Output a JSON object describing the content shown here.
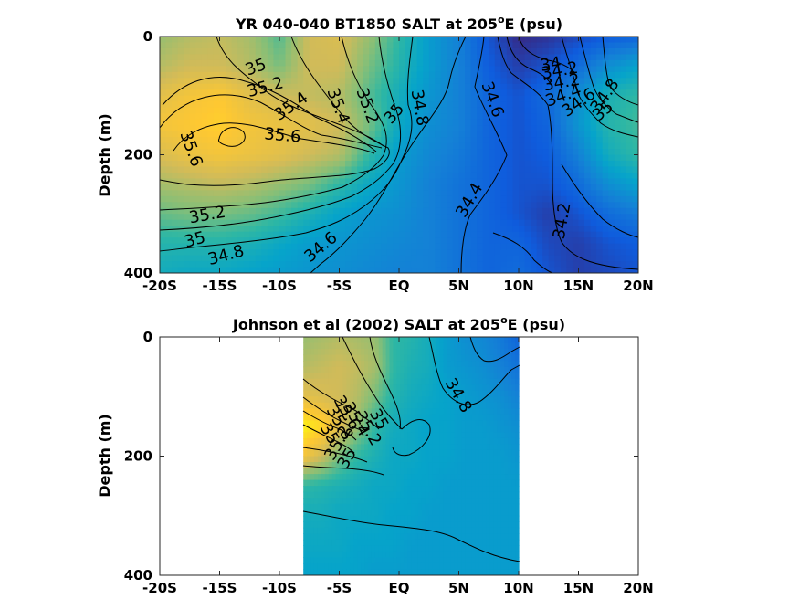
{
  "chart_data": [
    {
      "type": "heatmap",
      "subtype": "filled-contour",
      "title": "YR 040-040 BT1850 SALT at 205",
      "title_superscript": "o",
      "title_suffix": "E (psu)",
      "xlabel": "",
      "ylabel": "Depth (m)",
      "x_tick_labels": [
        "-20S",
        "-15S",
        "-10S",
        "-5S",
        "EQ",
        "5N",
        "10N",
        "15N",
        "20N"
      ],
      "x_tick_values": [
        -20,
        -15,
        -10,
        -5,
        0,
        5,
        10,
        15,
        20
      ],
      "y_tick_labels": [
        "0",
        "200",
        "400"
      ],
      "y_tick_values": [
        0,
        200,
        400
      ],
      "xlim": [
        -20,
        20
      ],
      "ylim": [
        0,
        400
      ],
      "y_reversed": true,
      "data_extent": [
        -20,
        20
      ],
      "colormap": "parula",
      "color_range": [
        34.0,
        36.0
      ],
      "x": [
        -20,
        -17.5,
        -15,
        -12.5,
        -10,
        -7.5,
        -5,
        -2.5,
        0,
        2.5,
        5,
        7.5,
        10,
        12.5,
        15,
        17.5,
        20
      ],
      "depth": [
        0,
        50,
        100,
        150,
        200,
        250,
        300,
        350,
        400
      ],
      "salinity": [
        [
          35.3,
          35.4,
          35.45,
          35.35,
          35.1,
          35.5,
          35.55,
          35.3,
          35.0,
          34.7,
          34.5,
          34.2,
          34.0,
          34.05,
          34.15,
          34.25,
          34.3
        ],
        [
          35.4,
          35.5,
          35.5,
          35.4,
          35.2,
          35.5,
          35.5,
          35.2,
          34.95,
          34.7,
          34.5,
          34.25,
          34.1,
          34.2,
          34.35,
          34.6,
          34.75
        ],
        [
          35.6,
          35.7,
          35.75,
          35.6,
          35.5,
          35.45,
          35.4,
          35.1,
          34.85,
          34.65,
          34.5,
          34.3,
          34.2,
          34.35,
          34.6,
          34.9,
          35.0
        ],
        [
          35.7,
          35.75,
          35.8,
          35.7,
          35.65,
          35.6,
          35.5,
          35.2,
          34.8,
          34.6,
          34.5,
          34.3,
          34.2,
          34.3,
          34.65,
          34.95,
          35.05
        ],
        [
          35.55,
          35.65,
          35.7,
          35.65,
          35.6,
          35.5,
          35.4,
          35.0,
          34.7,
          34.55,
          34.45,
          34.3,
          34.2,
          34.25,
          34.5,
          34.85,
          35.0
        ],
        [
          35.35,
          35.4,
          35.45,
          35.4,
          35.3,
          35.2,
          35.0,
          34.8,
          34.65,
          34.5,
          34.4,
          34.3,
          34.2,
          34.2,
          34.35,
          34.6,
          34.75
        ],
        [
          35.15,
          35.2,
          35.2,
          35.15,
          35.05,
          34.9,
          34.75,
          34.65,
          34.6,
          34.5,
          34.4,
          34.3,
          34.2,
          34.1,
          34.2,
          34.35,
          34.45
        ],
        [
          34.95,
          34.95,
          34.95,
          34.9,
          34.8,
          34.7,
          34.65,
          34.6,
          34.55,
          34.5,
          34.4,
          34.3,
          34.3,
          34.15,
          34.1,
          34.2,
          34.25
        ],
        [
          34.85,
          34.8,
          34.8,
          34.75,
          34.7,
          34.65,
          34.6,
          34.55,
          34.5,
          34.5,
          34.4,
          34.3,
          34.35,
          34.2,
          34.1,
          34.15,
          34.2
        ]
      ],
      "contour_labels": [
        "35",
        "35.2",
        "35.4",
        "35.6",
        "35.6",
        "35.4",
        "35.2",
        "35",
        "34.8",
        "34.6",
        "34.4",
        "34.2",
        "34",
        "34.2",
        "34.4",
        "34.6",
        "34.8",
        "35",
        "35.2",
        "35",
        "34.8",
        "34.6",
        "34.2"
      ]
    },
    {
      "type": "heatmap",
      "subtype": "filled-contour",
      "title": "Johnson et al (2002) SALT at 205",
      "title_superscript": "o",
      "title_suffix": "E (psu)",
      "xlabel": "",
      "ylabel": "Depth (m)",
      "x_tick_labels": [
        "-20S",
        "-15S",
        "-10S",
        "-5S",
        "EQ",
        "5N",
        "10N",
        "15N",
        "20N"
      ],
      "x_tick_values": [
        -20,
        -15,
        -10,
        -5,
        0,
        5,
        10,
        15,
        20
      ],
      "y_tick_labels": [
        "0",
        "200",
        "400"
      ],
      "y_tick_values": [
        0,
        200,
        400
      ],
      "xlim": [
        -20,
        20
      ],
      "ylim": [
        0,
        400
      ],
      "y_reversed": true,
      "data_extent": [
        -8,
        10
      ],
      "colormap": "parula",
      "color_range": [
        34.0,
        36.0
      ],
      "x": [
        -8,
        -6.5,
        -5,
        -3.5,
        -2,
        -0.5,
        1,
        2.5,
        4,
        5.5,
        7,
        8.5,
        10
      ],
      "depth": [
        0,
        50,
        100,
        150,
        200,
        250,
        300,
        350,
        400
      ],
      "salinity": [
        [
          35.3,
          35.35,
          35.4,
          35.35,
          35.3,
          35.0,
          34.95,
          34.85,
          34.7,
          34.6,
          34.55,
          34.45,
          34.3
        ],
        [
          35.4,
          35.45,
          35.5,
          35.45,
          35.35,
          35.0,
          34.9,
          34.85,
          34.7,
          34.65,
          34.6,
          34.5,
          34.4
        ],
        [
          35.6,
          35.55,
          35.5,
          35.4,
          35.2,
          34.95,
          34.85,
          34.8,
          34.75,
          34.7,
          34.65,
          34.6,
          34.5
        ],
        [
          35.95,
          35.85,
          35.6,
          35.3,
          35.0,
          34.85,
          34.8,
          34.75,
          34.75,
          34.7,
          34.7,
          34.65,
          34.6
        ],
        [
          35.7,
          35.5,
          35.2,
          35.0,
          34.9,
          34.8,
          34.8,
          34.75,
          34.75,
          34.7,
          34.7,
          34.7,
          34.65
        ],
        [
          35.0,
          34.95,
          34.9,
          34.85,
          34.8,
          34.8,
          34.75,
          34.75,
          34.7,
          34.7,
          34.7,
          34.7,
          34.7
        ],
        [
          34.85,
          34.85,
          34.8,
          34.8,
          34.8,
          34.75,
          34.75,
          34.7,
          34.7,
          34.7,
          34.7,
          34.7,
          34.7
        ],
        [
          34.8,
          34.8,
          34.8,
          34.75,
          34.75,
          34.75,
          34.7,
          34.7,
          34.7,
          34.7,
          34.7,
          34.7,
          34.7
        ],
        [
          34.75,
          34.75,
          34.75,
          34.75,
          34.7,
          34.7,
          34.7,
          34.7,
          34.7,
          34.7,
          34.7,
          34.7,
          34.7
        ]
      ],
      "contour_labels": [
        "34.8",
        "35",
        "35.2",
        "35.4",
        "35.6",
        "35.8",
        "35",
        "35.2",
        "35"
      ]
    }
  ]
}
